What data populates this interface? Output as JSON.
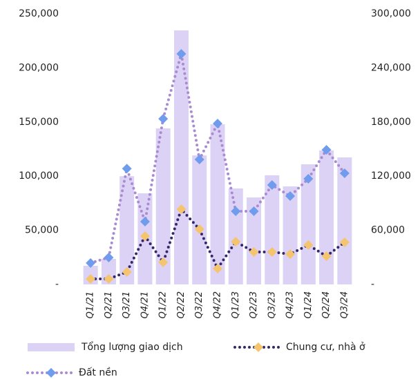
{
  "chart_data": {
    "type": "bar",
    "categories": [
      "Q1/21",
      "Q2/21",
      "Q3/21",
      "Q4/21",
      "Q1/22",
      "Q2/22",
      "Q3/22",
      "Q4/22",
      "Q1/23",
      "Q2/23",
      "Q3/23",
      "Q4/23",
      "Q1/24",
      "Q2/24",
      "Q3/24"
    ],
    "series": [
      {
        "name": "Tổng lượng giao dịch",
        "type": "bar",
        "axis": "y2",
        "color": "#dcd2f5",
        "values": [
          20700,
          28300,
          120000,
          101000,
          173000,
          281600,
          143000,
          177500,
          106400,
          96400,
          121000,
          108700,
          133200,
          148500,
          140800
        ]
      },
      {
        "name": "Chung cư, nhà ở",
        "type": "line",
        "color": "#35286a",
        "marker_color": "#f5c46e",
        "values": [
          5100,
          5100,
          11500,
          44600,
          20400,
          69500,
          51000,
          14700,
          39500,
          30000,
          30000,
          28000,
          36400,
          26100,
          38900
        ]
      },
      {
        "name": "Đất nền",
        "type": "line",
        "color": "#a98bd2",
        "marker_color": "#6f9ced",
        "values": [
          19800,
          24900,
          107000,
          58000,
          153000,
          213000,
          115400,
          148600,
          67600,
          67600,
          91800,
          81600,
          97600,
          124400,
          102700
        ]
      }
    ],
    "ylim": [
      0,
      250000
    ],
    "yticks": [
      {
        "value": 0,
        "label": "-"
      },
      {
        "value": 50000,
        "label": "50,000"
      },
      {
        "value": 100000,
        "label": "100,000"
      },
      {
        "value": 150000,
        "label": "150,000"
      },
      {
        "value": 200000,
        "label": "200,000"
      },
      {
        "value": 250000,
        "label": "250,000"
      }
    ],
    "y2lim": [
      0,
      300000
    ],
    "y2ticks": [
      {
        "value": 0,
        "label": "-"
      },
      {
        "value": 60000,
        "label": "60,000"
      },
      {
        "value": 120000,
        "label": "120,000"
      },
      {
        "value": 180000,
        "label": "180,000"
      },
      {
        "value": 240000,
        "label": "240,000"
      },
      {
        "value": 300000,
        "label": "300,000"
      }
    ],
    "legend": "bottom"
  }
}
